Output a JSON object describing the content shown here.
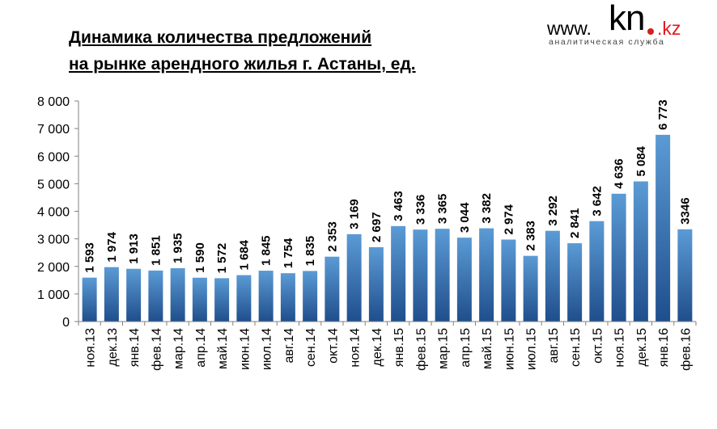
{
  "title_lines": [
    "Динамика количества предложений",
    "на рынке арендного жилья г. Астаны, ед."
  ],
  "logo": {
    "www": "www.",
    "brand": "kn",
    "tld": ".kz",
    "subtitle": "аналитическая служба"
  },
  "colors": {
    "bar_top": "#5b9bd5",
    "bar_bottom": "#1f4e8c",
    "logo_red": "#e0191b",
    "axis": "#808080"
  },
  "chart_data": {
    "type": "bar",
    "title": "Динамика количества предложений на рынке арендного жилья г. Астаны, ед.",
    "xlabel": "",
    "ylabel": "",
    "ylim": [
      0,
      8000
    ],
    "yticks": [
      0,
      1000,
      2000,
      3000,
      4000,
      5000,
      6000,
      7000,
      8000
    ],
    "ytick_labels": [
      "0",
      "1 000",
      "2 000",
      "3 000",
      "4 000",
      "5 000",
      "6 000",
      "7 000",
      "8 000"
    ],
    "grid": false,
    "categories": [
      "ноя.13",
      "дек.13",
      "янв.14",
      "фев.14",
      "мар.14",
      "апр.14",
      "май.14",
      "июн.14",
      "июл.14",
      "авг.14",
      "сен.14",
      "окт.14",
      "ноя.14",
      "дек.14",
      "янв.15",
      "фев.15",
      "мар.15",
      "апр.15",
      "май.15",
      "июн.15",
      "июл.15",
      "авг.15",
      "сен.15",
      "окт.15",
      "ноя.15",
      "дек.15",
      "янв.16",
      "фев.16"
    ],
    "values": [
      1593,
      1974,
      1913,
      1851,
      1935,
      1590,
      1572,
      1684,
      1845,
      1754,
      1835,
      2353,
      3169,
      2697,
      3463,
      3336,
      3365,
      3044,
      3382,
      2974,
      2383,
      3292,
      2841,
      3642,
      4636,
      5084,
      6773,
      3346
    ],
    "data_labels": [
      "1 593",
      "1 974",
      "1 913",
      "1 851",
      "1 935",
      "1 590",
      "1 572",
      "1 684",
      "1 845",
      "1 754",
      "1 835",
      "2 353",
      "3 169",
      "2 697",
      "3 463",
      "3 336",
      "3 365",
      "3 044",
      "3 382",
      "2 974",
      "2 383",
      "3 292",
      "2 841",
      "3 642",
      "4 636",
      "5 084",
      "6 773",
      "3346"
    ]
  }
}
